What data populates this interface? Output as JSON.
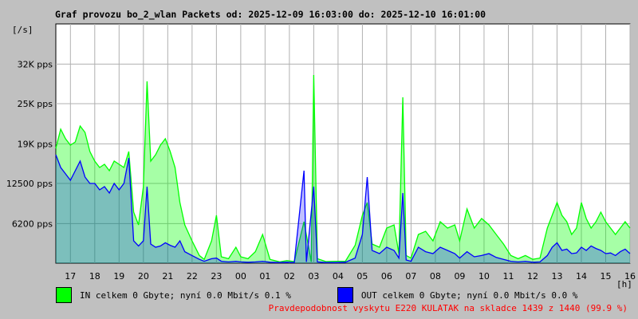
{
  "title": "Graf provozu bo_2_wlan Packets od: 2025-12-09 16:03:00 do: 2025-12-10 16:01:00",
  "y_unit": "[/s]",
  "x_unit": "[h]",
  "legend": {
    "in_text": "IN celkem 0 Gbyte; nyní   0.0 Mbit/s 0.1 %",
    "out_text": "OUT celkem 0 Gbyte; nyní   0.0 Mbit/s 0.0 %",
    "in_color": "#00ff00",
    "out_color": "#0000ff"
  },
  "note": "Pravdepodobnost vyskytu E220 KULATAK na skladce 1439 z 1440 (99.9 %)",
  "chart_data": {
    "type": "area",
    "title": "Graf provozu bo_2_wlan Packets od: 2025-12-09 16:03:00 do: 2025-12-10 16:01:00",
    "ylabel": "[/s]",
    "xlabel": "[h]",
    "grid": true,
    "ylim": [
      0,
      37500
    ],
    "xlim": [
      16.4,
      40.0
    ],
    "x_ticks": [
      {
        "label": "17",
        "x": 17
      },
      {
        "label": "18",
        "x": 18
      },
      {
        "label": "19",
        "x": 19
      },
      {
        "label": "20",
        "x": 20
      },
      {
        "label": "21",
        "x": 21
      },
      {
        "label": "22",
        "x": 22
      },
      {
        "label": "23",
        "x": 23
      },
      {
        "label": "00",
        "x": 24
      },
      {
        "label": "01",
        "x": 25
      },
      {
        "label": "02",
        "x": 26
      },
      {
        "label": "03",
        "x": 27
      },
      {
        "label": "04",
        "x": 28
      },
      {
        "label": "05",
        "x": 29
      },
      {
        "label": "06",
        "x": 30
      },
      {
        "label": "07",
        "x": 31
      },
      {
        "label": "08",
        "x": 32
      },
      {
        "label": "09",
        "x": 33
      },
      {
        "label": "10",
        "x": 34
      },
      {
        "label": "11",
        "x": 35
      },
      {
        "label": "12",
        "x": 36
      },
      {
        "label": "13",
        "x": 37
      },
      {
        "label": "14",
        "x": 38
      },
      {
        "label": "15",
        "x": 39
      },
      {
        "label": "16",
        "x": 40
      }
    ],
    "y_ticks": [
      {
        "label": "6200 pps",
        "value": 6200
      },
      {
        "label": "12500 pps",
        "value": 12500
      },
      {
        "label": "19K pps",
        "value": 18700
      },
      {
        "label": "25K pps",
        "value": 25000
      },
      {
        "label": "32K pps",
        "value": 31200
      }
    ],
    "series": [
      {
        "name": "IN",
        "color": "#00ff00",
        "points": [
          [
            16.4,
            18000
          ],
          [
            16.6,
            21000
          ],
          [
            16.8,
            19500
          ],
          [
            17.0,
            18500
          ],
          [
            17.2,
            19000
          ],
          [
            17.4,
            21500
          ],
          [
            17.6,
            20500
          ],
          [
            17.8,
            17500
          ],
          [
            18.0,
            16000
          ],
          [
            18.2,
            15000
          ],
          [
            18.4,
            15500
          ],
          [
            18.6,
            14500
          ],
          [
            18.8,
            16000
          ],
          [
            19.0,
            15500
          ],
          [
            19.2,
            15000
          ],
          [
            19.4,
            17500
          ],
          [
            19.6,
            8000
          ],
          [
            19.8,
            6000
          ],
          [
            20.0,
            12000
          ],
          [
            20.15,
            28500
          ],
          [
            20.3,
            16000
          ],
          [
            20.5,
            17000
          ],
          [
            20.7,
            18500
          ],
          [
            20.9,
            19500
          ],
          [
            21.1,
            17500
          ],
          [
            21.3,
            15000
          ],
          [
            21.5,
            9500
          ],
          [
            21.7,
            6000
          ],
          [
            22.0,
            3500
          ],
          [
            22.3,
            1200
          ],
          [
            22.5,
            600
          ],
          [
            22.8,
            3500
          ],
          [
            23.0,
            7500
          ],
          [
            23.2,
            1000
          ],
          [
            23.5,
            700
          ],
          [
            23.8,
            2500
          ],
          [
            24.0,
            1000
          ],
          [
            24.3,
            700
          ],
          [
            24.6,
            1800
          ],
          [
            24.9,
            4500
          ],
          [
            25.2,
            600
          ],
          [
            25.6,
            200
          ],
          [
            25.9,
            400
          ],
          [
            26.2,
            250
          ],
          [
            26.6,
            6500
          ],
          [
            26.9,
            200
          ],
          [
            27.0,
            29500
          ],
          [
            27.15,
            700
          ],
          [
            27.5,
            250
          ],
          [
            27.9,
            300
          ],
          [
            28.3,
            300
          ],
          [
            28.7,
            2800
          ],
          [
            29.0,
            7500
          ],
          [
            29.2,
            9500
          ],
          [
            29.4,
            3000
          ],
          [
            29.7,
            2500
          ],
          [
            30.0,
            5500
          ],
          [
            30.3,
            6000
          ],
          [
            30.5,
            1500
          ],
          [
            30.66,
            26000
          ],
          [
            30.8,
            1200
          ],
          [
            31.0,
            800
          ],
          [
            31.3,
            4500
          ],
          [
            31.6,
            5000
          ],
          [
            31.9,
            3500
          ],
          [
            32.2,
            6500
          ],
          [
            32.5,
            5500
          ],
          [
            32.8,
            6000
          ],
          [
            33.0,
            3500
          ],
          [
            33.3,
            8500
          ],
          [
            33.6,
            5500
          ],
          [
            33.9,
            7000
          ],
          [
            34.2,
            6000
          ],
          [
            34.5,
            4500
          ],
          [
            34.8,
            3000
          ],
          [
            35.1,
            1200
          ],
          [
            35.4,
            700
          ],
          [
            35.7,
            1200
          ],
          [
            36.0,
            600
          ],
          [
            36.3,
            800
          ],
          [
            36.6,
            5500
          ],
          [
            36.8,
            7500
          ],
          [
            37.0,
            9500
          ],
          [
            37.2,
            7500
          ],
          [
            37.4,
            6500
          ],
          [
            37.6,
            4500
          ],
          [
            37.8,
            5500
          ],
          [
            38.0,
            9500
          ],
          [
            38.2,
            7000
          ],
          [
            38.4,
            5500
          ],
          [
            38.6,
            6500
          ],
          [
            38.8,
            8000
          ],
          [
            39.0,
            6500
          ],
          [
            39.2,
            5500
          ],
          [
            39.4,
            4500
          ],
          [
            39.6,
            5500
          ],
          [
            39.8,
            6500
          ],
          [
            40.0,
            5500
          ]
        ]
      },
      {
        "name": "OUT",
        "color": "#0000ff",
        "points": [
          [
            16.4,
            17000
          ],
          [
            16.6,
            15000
          ],
          [
            16.8,
            14000
          ],
          [
            17.0,
            13000
          ],
          [
            17.2,
            14500
          ],
          [
            17.4,
            16000
          ],
          [
            17.6,
            13500
          ],
          [
            17.8,
            12500
          ],
          [
            18.0,
            12500
          ],
          [
            18.2,
            11500
          ],
          [
            18.4,
            12000
          ],
          [
            18.6,
            11000
          ],
          [
            18.8,
            12500
          ],
          [
            19.0,
            11500
          ],
          [
            19.2,
            12500
          ],
          [
            19.4,
            16500
          ],
          [
            19.6,
            3500
          ],
          [
            19.8,
            2700
          ],
          [
            20.0,
            3500
          ],
          [
            20.15,
            12000
          ],
          [
            20.3,
            3000
          ],
          [
            20.5,
            2500
          ],
          [
            20.7,
            2700
          ],
          [
            20.9,
            3200
          ],
          [
            21.1,
            2800
          ],
          [
            21.3,
            2500
          ],
          [
            21.5,
            3500
          ],
          [
            21.7,
            1800
          ],
          [
            22.0,
            1200
          ],
          [
            22.3,
            600
          ],
          [
            22.5,
            300
          ],
          [
            22.8,
            700
          ],
          [
            23.0,
            800
          ],
          [
            23.2,
            300
          ],
          [
            23.5,
            200
          ],
          [
            23.8,
            300
          ],
          [
            24.0,
            200
          ],
          [
            24.3,
            150
          ],
          [
            24.6,
            200
          ],
          [
            24.9,
            300
          ],
          [
            25.2,
            150
          ],
          [
            25.6,
            100
          ],
          [
            25.9,
            150
          ],
          [
            26.2,
            100
          ],
          [
            26.6,
            14500
          ],
          [
            26.7,
            200
          ],
          [
            27.0,
            12000
          ],
          [
            27.15,
            200
          ],
          [
            27.5,
            100
          ],
          [
            27.9,
            100
          ],
          [
            28.3,
            150
          ],
          [
            28.7,
            800
          ],
          [
            29.0,
            4500
          ],
          [
            29.2,
            13500
          ],
          [
            29.4,
            2000
          ],
          [
            29.7,
            1500
          ],
          [
            30.0,
            2500
          ],
          [
            30.3,
            2000
          ],
          [
            30.5,
            800
          ],
          [
            30.66,
            11000
          ],
          [
            30.8,
            500
          ],
          [
            31.0,
            300
          ],
          [
            31.3,
            2500
          ],
          [
            31.6,
            1800
          ],
          [
            31.9,
            1500
          ],
          [
            32.2,
            2500
          ],
          [
            32.5,
            2000
          ],
          [
            32.8,
            1500
          ],
          [
            33.0,
            800
          ],
          [
            33.3,
            1800
          ],
          [
            33.6,
            1000
          ],
          [
            33.9,
            1200
          ],
          [
            34.2,
            1500
          ],
          [
            34.5,
            900
          ],
          [
            34.8,
            600
          ],
          [
            35.1,
            300
          ],
          [
            35.4,
            200
          ],
          [
            35.7,
            300
          ],
          [
            36.0,
            150
          ],
          [
            36.3,
            200
          ],
          [
            36.6,
            1200
          ],
          [
            36.8,
            2500
          ],
          [
            37.0,
            3200
          ],
          [
            37.2,
            2000
          ],
          [
            37.4,
            2200
          ],
          [
            37.6,
            1500
          ],
          [
            37.8,
            1600
          ],
          [
            38.0,
            2500
          ],
          [
            38.2,
            2000
          ],
          [
            38.4,
            2700
          ],
          [
            38.6,
            2300
          ],
          [
            38.8,
            2000
          ],
          [
            39.0,
            1500
          ],
          [
            39.2,
            1600
          ],
          [
            39.4,
            1200
          ],
          [
            39.6,
            1800
          ],
          [
            39.8,
            2200
          ],
          [
            40.0,
            1500
          ]
        ]
      }
    ]
  }
}
